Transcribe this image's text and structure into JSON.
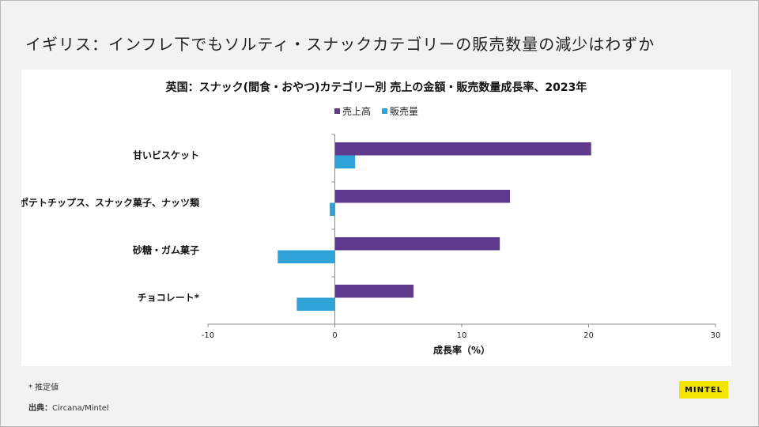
{
  "slide": {
    "title": "イギリス：インフレ下でもソルティ・スナックカテゴリーの販売数量の減少はわずか",
    "footnote": "* 推定値",
    "source_label": "出典：",
    "source_value": "Circana/Mintel",
    "logo_text": "MINTEL"
  },
  "chart_data": {
    "type": "bar",
    "orientation": "horizontal",
    "title": "英国：スナック(間食・おやつ)カテゴリー別 売上の金額・販売数量成長率、2023年",
    "categories": [
      "甘いビスケット",
      "ポテトチップス、スナック菓子、ナッツ類",
      "砂糖・ガム菓子",
      "チョコレート*"
    ],
    "series": [
      {
        "name": "売上高",
        "color": "#5f3a8c",
        "values": [
          20.2,
          13.8,
          13.0,
          6.2
        ]
      },
      {
        "name": "販売量",
        "color": "#2fa3d8",
        "values": [
          1.6,
          -0.4,
          -4.5,
          -3.0
        ]
      }
    ],
    "xlabel": "成長率（%）",
    "ylabel": "",
    "xlim": [
      -10,
      30
    ],
    "xticks": [
      "-10",
      "0",
      "10",
      "20",
      "30"
    ],
    "legend_position": "top-center",
    "grid": false
  }
}
